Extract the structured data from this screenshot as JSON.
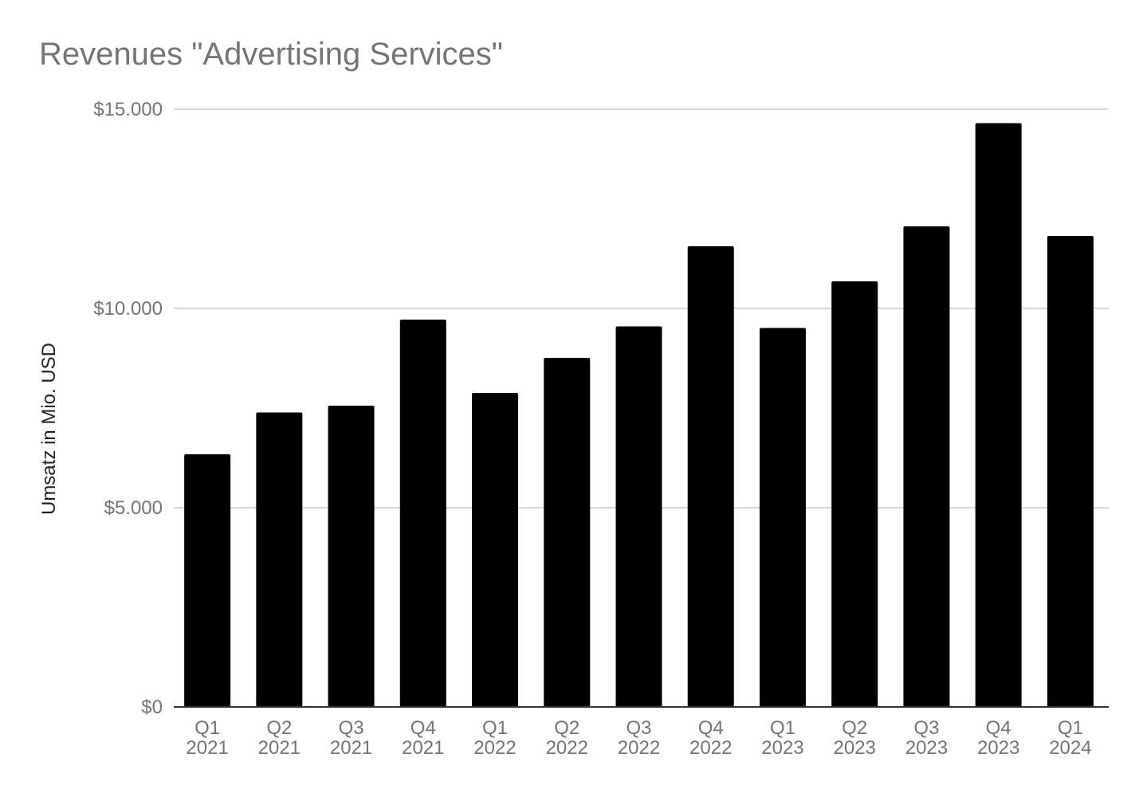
{
  "chart_data": {
    "type": "bar",
    "title": "Revenues \"Advertising Services\"",
    "xlabel": "",
    "ylabel": "Umsatz in Mio. USD",
    "categories": [
      [
        "Q1",
        "2021"
      ],
      [
        "Q2",
        "2021"
      ],
      [
        "Q3",
        "2021"
      ],
      [
        "Q4",
        "2021"
      ],
      [
        "Q1",
        "2022"
      ],
      [
        "Q2",
        "2022"
      ],
      [
        "Q3",
        "2022"
      ],
      [
        "Q4",
        "2022"
      ],
      [
        "Q1",
        "2023"
      ],
      [
        "Q2",
        "2023"
      ],
      [
        "Q3",
        "2023"
      ],
      [
        "Q4",
        "2023"
      ],
      [
        "Q1",
        "2024"
      ]
    ],
    "values": [
      6340,
      7390,
      7560,
      9720,
      7880,
      8760,
      9550,
      11560,
      9510,
      10680,
      12060,
      14650,
      11820
    ],
    "ylim": [
      0,
      15000
    ],
    "yticks": [
      0,
      5000,
      10000,
      15000
    ],
    "ytick_labels": [
      "$0",
      "$5.000",
      "$10.000",
      "$15.000"
    ],
    "grid": true,
    "legend": "none",
    "colors": {
      "bar": "#000000",
      "grid": "#cccccc",
      "axis": "#333333",
      "title": "#757575",
      "ticks": "#757575",
      "ylabel": "#222222"
    }
  }
}
